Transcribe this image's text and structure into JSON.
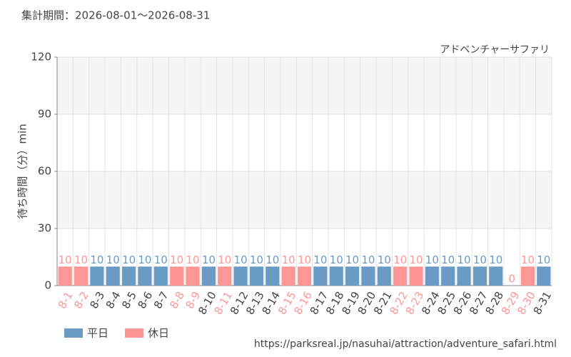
{
  "header": "集計期間：2026-08-01～2026-08-31",
  "footer": "https://parksreal.jp/nasuhai/attraction/adventure_safari.html",
  "chart_data": {
    "type": "bar",
    "subtitle": "アドベンチャーサファリ",
    "y_label": "待ち時間（分）min",
    "categories": [
      "8-1",
      "8-2",
      "8-3",
      "8-4",
      "8-5",
      "8-6",
      "8-7",
      "8-8",
      "8-9",
      "8-10",
      "8-11",
      "8-12",
      "8-13",
      "8-14",
      "8-15",
      "8-16",
      "8-17",
      "8-18",
      "8-19",
      "8-20",
      "8-21",
      "8-22",
      "8-23",
      "8-24",
      "8-25",
      "8-26",
      "8-27",
      "8-28",
      "8-29",
      "8-30",
      "8-31"
    ],
    "series": [
      {
        "name": "平日",
        "color": "#6a9bc5",
        "values": [
          null,
          null,
          10,
          10,
          10,
          10,
          10,
          null,
          null,
          10,
          null,
          10,
          10,
          10,
          null,
          null,
          10,
          10,
          10,
          10,
          10,
          null,
          null,
          10,
          10,
          10,
          10,
          10,
          null,
          null,
          10
        ]
      },
      {
        "name": "休日",
        "color": "#ff9696",
        "values": [
          10,
          10,
          null,
          null,
          null,
          null,
          null,
          10,
          10,
          null,
          10,
          null,
          null,
          null,
          10,
          10,
          null,
          null,
          null,
          null,
          null,
          10,
          10,
          null,
          null,
          null,
          null,
          null,
          0,
          10,
          null
        ]
      }
    ],
    "ylim": [
      0,
      120
    ],
    "yticks": [
      0,
      30,
      60,
      90,
      120
    ],
    "grid": true
  }
}
